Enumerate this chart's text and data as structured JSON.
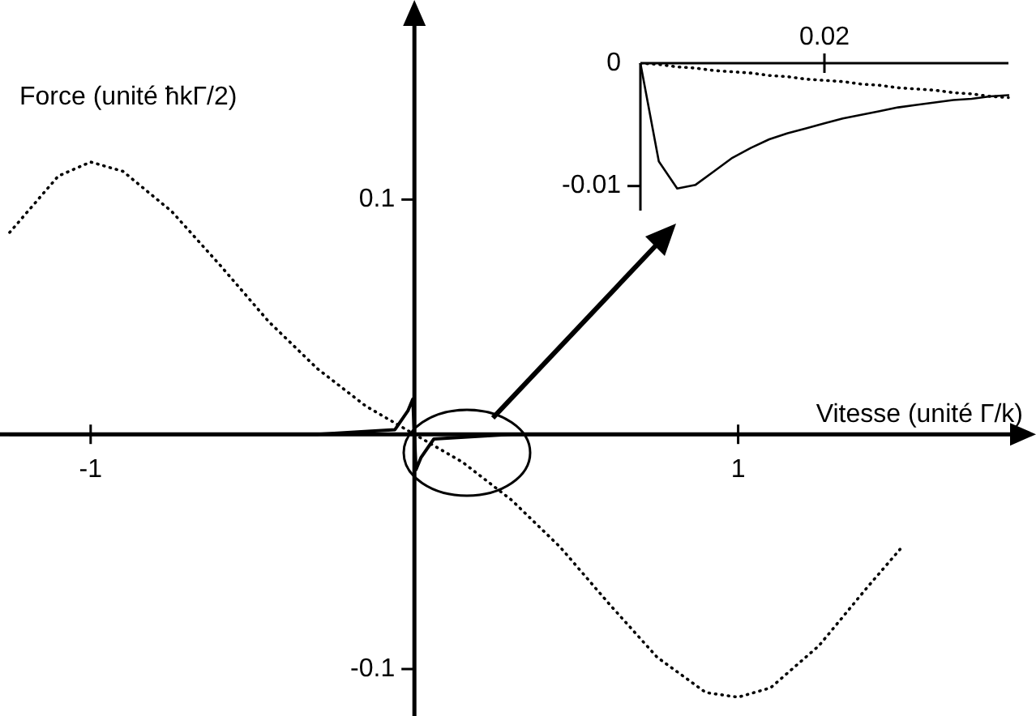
{
  "chart_data": [
    {
      "type": "line",
      "xlabel": "Vitesse (unité Γ/k)",
      "ylabel": "Force (unité ħkΓ/2)",
      "xlim": [
        -1.28,
        1.92
      ],
      "ylim": [
        -0.12,
        0.185
      ],
      "xticks": [
        -1,
        1
      ],
      "yticks": [
        0.1,
        -0.1
      ],
      "marker": "none",
      "series": [
        {
          "color": "#000000",
          "line_style": "dotted",
          "x": [
            -1.25,
            -1.1,
            -1.0,
            -0.9,
            -0.75,
            -0.6,
            -0.45,
            -0.3,
            -0.15,
            0,
            0.15,
            0.3,
            0.45,
            0.6,
            0.75,
            0.9,
            1.0,
            1.1,
            1.25,
            1.4,
            1.5
          ],
          "values": [
            0.086,
            0.11,
            0.116,
            0.112,
            0.095,
            0.072,
            0.048,
            0.028,
            0.012,
            0,
            -0.012,
            -0.028,
            -0.048,
            -0.072,
            -0.095,
            -0.11,
            -0.112,
            -0.108,
            -0.09,
            -0.065,
            -0.049
          ]
        },
        {
          "color": "#000000",
          "line_style": "solid",
          "x": [
            -1.25,
            -0.3,
            -0.06,
            -0.02,
            -0.005,
            0,
            0.005,
            0.02,
            0.06,
            0.3,
            1.9
          ],
          "values": [
            0,
            0,
            0.002,
            0.01,
            0.015,
            0,
            -0.015,
            -0.01,
            -0.002,
            0,
            0
          ]
        }
      ]
    },
    {
      "type": "line",
      "categories": [
        null,
        null,
        null,
        null,
        null,
        null,
        null,
        null,
        null,
        null,
        "0.02",
        null,
        null,
        null,
        null,
        null,
        null,
        null,
        null,
        null,
        null
      ],
      "ylim": [
        -0.012,
        0
      ],
      "yticks": [
        0,
        -0.01
      ],
      "marker": "none",
      "series": [
        {
          "color": "#000000",
          "line_style": "dotted",
          "values": [
            0,
            -0.0001,
            -0.0003,
            -0.0004,
            -0.0006,
            -0.0007,
            -0.0008,
            -0.001,
            -0.0011,
            -0.0013,
            -0.0014,
            -0.0015,
            -0.0017,
            -0.0018,
            -0.002,
            -0.0021,
            -0.0022,
            -0.0024,
            -0.0025,
            -0.0027,
            -0.0028
          ]
        },
        {
          "color": "#000000",
          "line_style": "solid",
          "values": [
            0,
            -0.008,
            -0.0102,
            -0.0099,
            -0.0088,
            -0.0077,
            -0.0069,
            -0.0062,
            -0.0057,
            -0.0053,
            -0.0049,
            -0.0045,
            -0.0042,
            -0.0039,
            -0.0036,
            -0.0034,
            -0.0032,
            -0.003,
            -0.0029,
            -0.0027,
            -0.0026
          ]
        }
      ]
    }
  ]
}
